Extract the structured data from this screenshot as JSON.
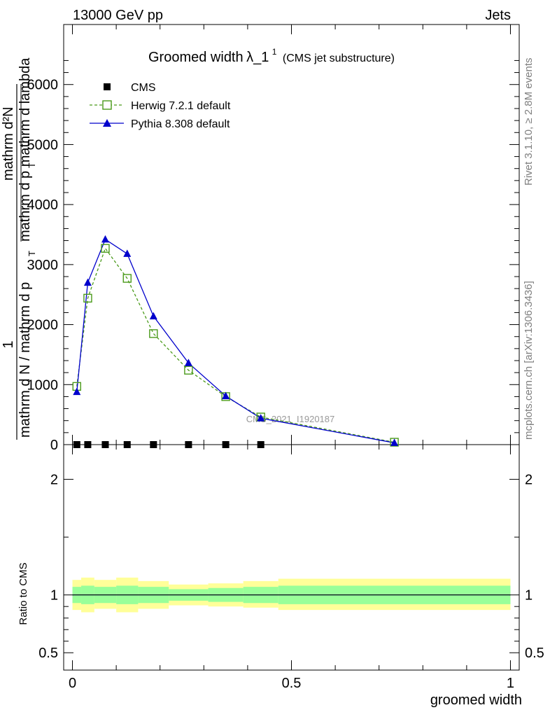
{
  "header": {
    "left_label": "13000 GeV pp",
    "right_label": "Jets"
  },
  "title": {
    "main": "Groomed width",
    "symbol": "λ_1",
    "superscript": "1",
    "subtitle": "(CMS jet substructure)"
  },
  "side_labels": {
    "rivet": "Rivet 3.1.10, ≥ 2.8M events",
    "mcplots": "mcplots.cern.ch [arXiv:1306.3436]"
  },
  "watermark": "CMS_2021_I1920187",
  "ylabel_main": {
    "numerator_one": "1",
    "numerator_dn": "mathrm dN",
    "denominator": "mathrm d N / mathrm d p",
    "sub_t": "T",
    "upper_frac_num": "mathrm d²N",
    "upper_frac_den": "mathrm d p  mathrm d lambda",
    "upper_frac_sub": "T"
  },
  "ylabel_ratio": "Ratio to CMS",
  "xlabel": "groomed width",
  "legend": [
    {
      "name": "CMS",
      "color": "#000000",
      "marker": "square-filled"
    },
    {
      "name": "Herwig 7.2.1 default",
      "color": "#4a9a1a",
      "marker": "square-open",
      "dash": true
    },
    {
      "name": "Pythia 8.308 default",
      "color": "#0000cc",
      "marker": "triangle-filled"
    }
  ],
  "chart_data": [
    {
      "type": "line",
      "title": "Groomed width λ_1¹ (CMS jet substructure)",
      "xlim": [
        -0.02,
        1.02
      ],
      "ylim": [
        0,
        7000
      ],
      "yticks": [
        0,
        1000,
        2000,
        3000,
        4000,
        5000,
        6000
      ],
      "ytick_labels": [
        "0",
        "1000",
        "2000",
        "3000",
        "4000",
        "5000",
        "6000"
      ],
      "series": [
        {
          "name": "CMS",
          "x": [
            0.01,
            0.035,
            0.075,
            0.125,
            0.185,
            0.265,
            0.35,
            0.43
          ],
          "y": [
            0,
            0,
            0,
            0,
            0,
            0,
            0,
            0
          ]
        },
        {
          "name": "Herwig 7.2.1 default",
          "x": [
            0.01,
            0.035,
            0.075,
            0.125,
            0.185,
            0.265,
            0.35,
            0.43,
            0.735
          ],
          "y": [
            970,
            2440,
            3270,
            2770,
            1850,
            1240,
            800,
            460,
            40
          ]
        },
        {
          "name": "Pythia 8.308 default",
          "x": [
            0.01,
            0.035,
            0.075,
            0.125,
            0.185,
            0.265,
            0.35,
            0.43,
            0.735
          ],
          "y": [
            880,
            2700,
            3420,
            3180,
            2140,
            1360,
            810,
            440,
            30
          ]
        }
      ]
    },
    {
      "type": "area",
      "ylabel": "Ratio to CMS",
      "xlabel": "groomed width",
      "xlim": [
        -0.02,
        1.02
      ],
      "ylim": [
        0.35,
        2.3
      ],
      "yticks": [
        0.5,
        1,
        2
      ],
      "ytick_labels": [
        "0.5",
        "1",
        "2"
      ],
      "xticks": [
        0,
        0.5,
        1
      ],
      "xtick_labels": [
        "0",
        "0.5",
        "1"
      ],
      "bins": [
        {
          "lo": 0.0,
          "hi": 0.02,
          "inner": [
            0.93,
            1.07
          ],
          "outer": [
            0.87,
            1.13
          ]
        },
        {
          "lo": 0.02,
          "hi": 0.05,
          "inner": [
            0.92,
            1.08
          ],
          "outer": [
            0.85,
            1.15
          ]
        },
        {
          "lo": 0.05,
          "hi": 0.1,
          "inner": [
            0.93,
            1.07
          ],
          "outer": [
            0.88,
            1.13
          ]
        },
        {
          "lo": 0.1,
          "hi": 0.15,
          "inner": [
            0.92,
            1.08
          ],
          "outer": [
            0.85,
            1.15
          ]
        },
        {
          "lo": 0.15,
          "hi": 0.22,
          "inner": [
            0.93,
            1.07
          ],
          "outer": [
            0.88,
            1.12
          ]
        },
        {
          "lo": 0.22,
          "hi": 0.31,
          "inner": [
            0.95,
            1.05
          ],
          "outer": [
            0.91,
            1.09
          ]
        },
        {
          "lo": 0.31,
          "hi": 0.39,
          "inner": [
            0.94,
            1.06
          ],
          "outer": [
            0.9,
            1.1
          ]
        },
        {
          "lo": 0.39,
          "hi": 0.47,
          "inner": [
            0.93,
            1.07
          ],
          "outer": [
            0.89,
            1.12
          ]
        },
        {
          "lo": 0.47,
          "hi": 1.0,
          "inner": [
            0.92,
            1.08
          ],
          "outer": [
            0.87,
            1.14
          ]
        }
      ],
      "series": [
        {
          "name": "Herwig 7.2.1 default",
          "y": [
            1,
            1,
            1,
            1,
            1,
            1,
            1,
            1,
            1
          ]
        },
        {
          "name": "Pythia 8.308 default",
          "y": [
            1,
            1,
            1,
            1,
            1,
            1,
            1,
            1,
            1
          ]
        }
      ]
    }
  ]
}
